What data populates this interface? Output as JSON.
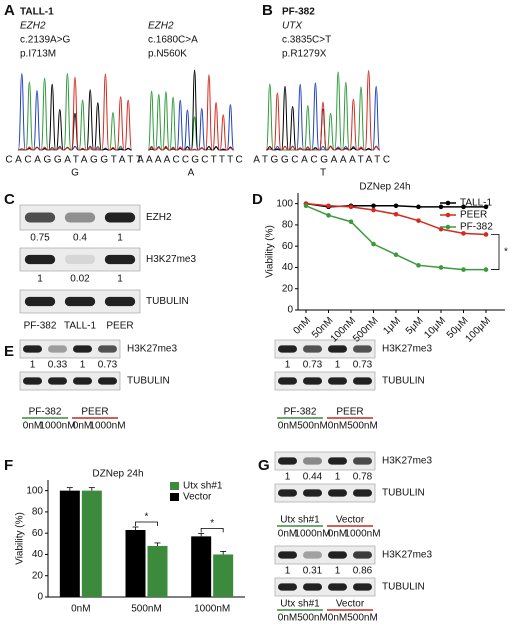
{
  "panels": {
    "A": {
      "letter": "A",
      "cell_line": "TALL-1",
      "mutations": [
        {
          "gene": "EZH2",
          "cdna": "c.2139A>G",
          "protein": "p.I713M",
          "sequence": "CACAGGATAGGTATT",
          "variant": "G"
        },
        {
          "gene": "EZH2",
          "cdna": "c.1680C>A",
          "protein": "p.N560K",
          "sequence": "AAAACCGCTTTC",
          "variant": "A"
        }
      ]
    },
    "B": {
      "letter": "B",
      "cell_line": "PF-382",
      "mutations": [
        {
          "gene": "UTX",
          "cdna": "c.3835C>T",
          "protein": "p.R1279X",
          "sequence": "ATGGCACGAAATATC",
          "variant": "T"
        }
      ]
    },
    "C": {
      "letter": "C",
      "proteins": [
        "EZH2",
        "H3K27me3",
        "TUBULIN"
      ],
      "quantification": [
        [
          0.75,
          0.4,
          1
        ],
        [
          1,
          0.02,
          1
        ]
      ],
      "lanes": [
        "PF-382",
        "TALL-1",
        "PEER"
      ]
    },
    "D": {
      "letter": "D"
    },
    "E": {
      "letter": "E",
      "blots": [
        {
          "proteins": [
            "H3K27me3",
            "TUBULIN"
          ],
          "quantification": [
            1,
            0.33,
            1,
            0.73
          ],
          "groups": [
            {
              "name": "PF-382",
              "doses": [
                "0nM",
                "1000nM"
              ]
            },
            {
              "name": "PEER",
              "doses": [
                "0nM",
                "1000nM"
              ]
            }
          ]
        },
        {
          "proteins": [
            "H3K27me3",
            "TUBULIN"
          ],
          "quantification": [
            1,
            0.73,
            1,
            0.73
          ],
          "groups": [
            {
              "name": "PF-382",
              "doses": [
                "0nM",
                "500nM"
              ]
            },
            {
              "name": "PEER",
              "doses": [
                "0nM",
                "500nM"
              ]
            }
          ]
        }
      ]
    },
    "F": {
      "letter": "F"
    },
    "G": {
      "letter": "G",
      "blots": [
        {
          "proteins": [
            "H3K27me3",
            "TUBULIN"
          ],
          "quantification": [
            1,
            0.44,
            1,
            0.78
          ],
          "groups": [
            {
              "name": "Utx sh#1",
              "doses": [
                "0nM",
                "1000nM"
              ]
            },
            {
              "name": "Vector",
              "doses": [
                "0nM",
                "1000nM"
              ]
            }
          ]
        },
        {
          "proteins": [
            "H3K27me3",
            "TUBULIN"
          ],
          "quantification": [
            1,
            0.31,
            1,
            0.86
          ],
          "groups": [
            {
              "name": "Utx sh#1",
              "doses": [
                "0nM",
                "500nM"
              ]
            },
            {
              "name": "Vector",
              "doses": [
                "0nM",
                "500nM"
              ]
            }
          ]
        }
      ]
    }
  },
  "chart_data": [
    {
      "type": "line",
      "title": "DZNep 24h",
      "ylabel": "Viability (%)",
      "categories": [
        "0nM",
        "50nM",
        "100nM",
        "500nM",
        "1μM",
        "5μM",
        "10μM",
        "50μM",
        "100μM"
      ],
      "series": [
        {
          "name": "TALL-1",
          "color": "#000000",
          "values": [
            100,
            97,
            98,
            98,
            98,
            97,
            97,
            97,
            97
          ]
        },
        {
          "name": "PEER",
          "color": "#d42a20",
          "values": [
            100,
            98,
            97,
            94,
            90,
            84,
            76,
            72,
            71
          ]
        },
        {
          "name": "PF-382",
          "color": "#3c9a3c",
          "values": [
            98,
            89,
            83,
            62,
            52,
            42,
            40,
            38,
            38
          ]
        }
      ],
      "ylim": [
        0,
        110
      ],
      "yticks": [
        0,
        20,
        40,
        60,
        80,
        100
      ],
      "annotations": [
        "*"
      ],
      "legend": "upper right"
    },
    {
      "type": "bar",
      "title": "DZNep 24h",
      "ylabel": "Viability (%)",
      "categories": [
        "0nM",
        "500nM",
        "1000nM"
      ],
      "series": [
        {
          "name": "Utx sh#1",
          "color": "#3c8a3c",
          "values": [
            100,
            48,
            40
          ]
        },
        {
          "name": "Vector",
          "color": "#000000",
          "values": [
            100,
            63,
            57
          ]
        }
      ],
      "ylim": [
        0,
        110
      ],
      "yticks": [
        0,
        20,
        40,
        60,
        80,
        100
      ],
      "annotations": [
        "*",
        "*"
      ],
      "legend": "upper right"
    }
  ]
}
